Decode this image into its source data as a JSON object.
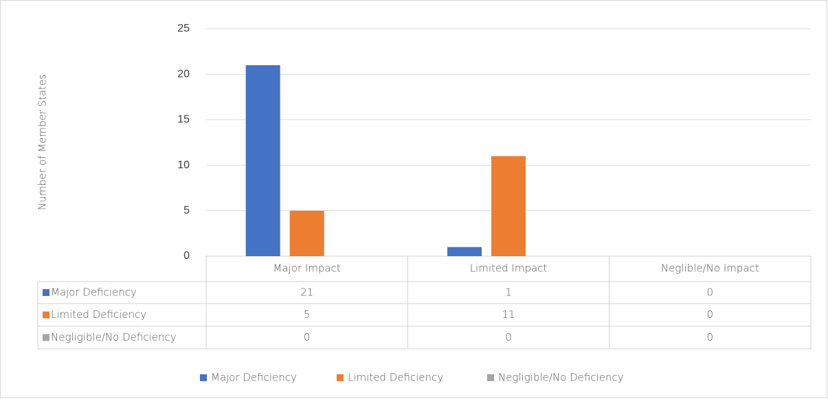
{
  "chart_data": {
    "type": "bar",
    "y_label": "Number of Member States",
    "categories": [
      "Major Impact",
      "Limited Impact",
      "Neglible/No Impact"
    ],
    "series": [
      {
        "name": "Major Deficiency",
        "color": "#4472c4",
        "values": [
          21,
          1,
          0
        ]
      },
      {
        "name": "Limited Deficiency",
        "color": "#ed7d31",
        "values": [
          5,
          11,
          0
        ]
      },
      {
        "name": "Negligible/No Deficiency",
        "color": "#a5a5a5",
        "values": [
          0,
          0,
          0
        ]
      }
    ],
    "ylim": [
      0,
      25
    ],
    "yticks": [
      0,
      5,
      10,
      15,
      20,
      25
    ],
    "grid": true,
    "legend": "bottom"
  }
}
